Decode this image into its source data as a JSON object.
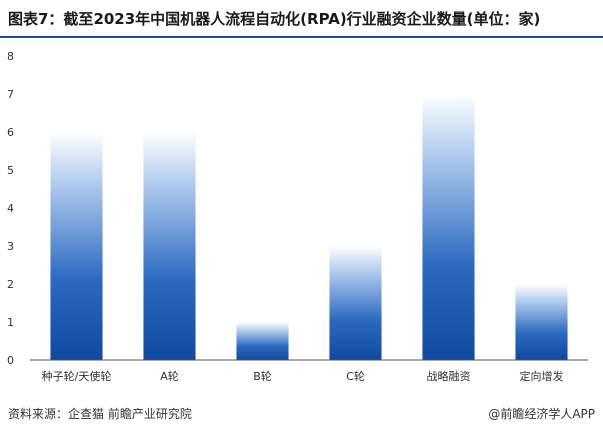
{
  "header": {
    "title": "图表7：截至2023年中国机器人流程自动化(RPA)行业融资企业数量(单位：家)"
  },
  "footer": {
    "source": "资料来源：企查猫 前瞻产业研究院",
    "brand": "@前瞻经济学人APP"
  },
  "colors": {
    "bar_dark": "#1550a3",
    "bar_light": "#ffffff",
    "rule": "#1f4e9c"
  },
  "chart_data": {
    "type": "bar",
    "categories": [
      "种子轮/天使轮",
      "A轮",
      "B轮",
      "C轮",
      "战略融资",
      "定向增发"
    ],
    "values": [
      6,
      6,
      1,
      3,
      7,
      2
    ],
    "ylim": [
      0,
      8
    ],
    "yticks": [
      0,
      1,
      2,
      3,
      4,
      5,
      6,
      7,
      8
    ],
    "title": "",
    "xlabel": "",
    "ylabel": "",
    "grid": false
  }
}
